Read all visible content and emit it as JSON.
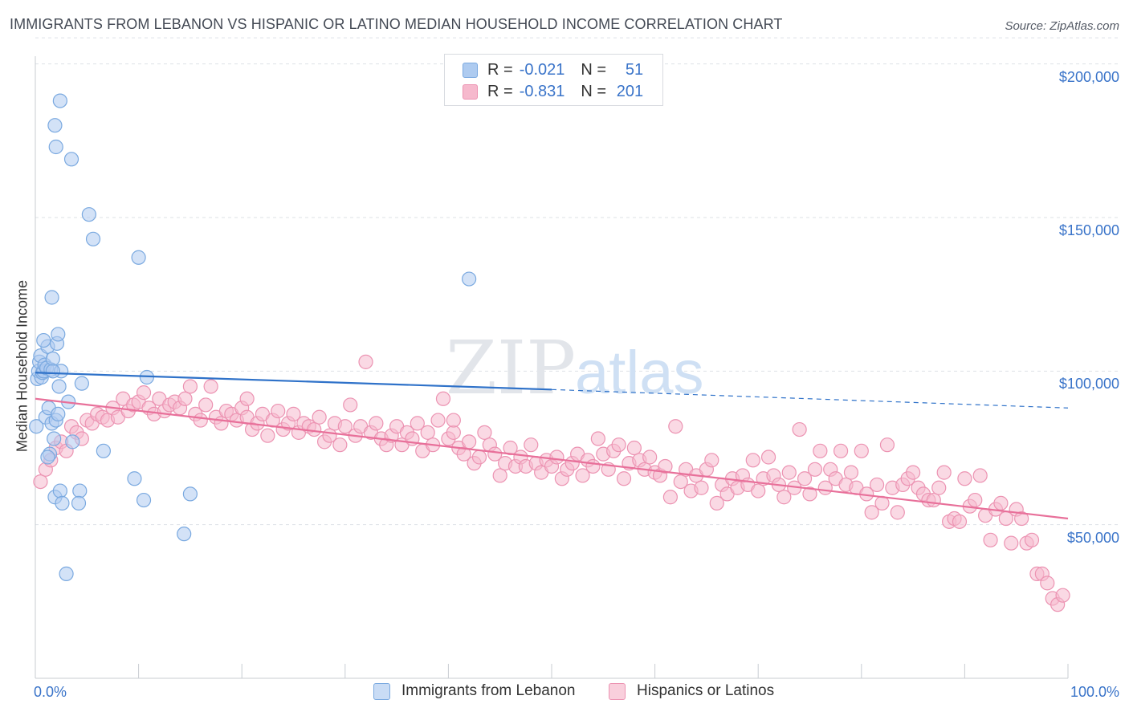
{
  "header": {
    "title": "IMMIGRANTS FROM LEBANON VS HISPANIC OR LATINO MEDIAN HOUSEHOLD INCOME CORRELATION CHART",
    "source": "Source: ZipAtlas.com"
  },
  "watermark": {
    "zip": "ZIP",
    "atlas": "atlas"
  },
  "legend_top": {
    "rows": [
      {
        "r_label": "R =",
        "r_value": "-0.021",
        "n_label": "N =",
        "n_value": "51"
      },
      {
        "r_label": "R =",
        "r_value": "-0.831",
        "n_label": "N =",
        "n_value": "201"
      }
    ]
  },
  "legend_bottom": {
    "items": [
      {
        "label": "Immigrants from Lebanon"
      },
      {
        "label": "Hispanics or Latinos"
      }
    ]
  },
  "colors": {
    "blue_fill": "#aecbf0",
    "blue_stroke": "#7aa9e0",
    "blue_line": "#2f72c9",
    "pink_fill": "#f6b9cd",
    "pink_stroke": "#ec93b2",
    "pink_line": "#e8709a",
    "grid": "#dde1e6",
    "axis_label": "#3a74c9"
  },
  "chart_data": {
    "type": "scatter",
    "title": "IMMIGRANTS FROM LEBANON VS HISPANIC OR LATINO MEDIAN HOUSEHOLD INCOME CORRELATION CHART",
    "xlabel": "",
    "ylabel": "Median Household Income",
    "xlim": [
      0,
      100
    ],
    "ylim": [
      0,
      210000
    ],
    "x_tick_labels": [
      "0.0%",
      "100.0%"
    ],
    "y_tick_labels": [
      "$50,000",
      "$100,000",
      "$150,000",
      "$200,000"
    ],
    "y_tick_values": [
      50000,
      100000,
      150000,
      200000
    ],
    "grid": true,
    "series": [
      {
        "name": "Immigrants from Lebanon",
        "r": -0.021,
        "n": 51,
        "trend": {
          "x0": 0,
          "y0": 99500,
          "x1": 50,
          "y1": 94000,
          "dashed_to_x": 100,
          "dashed_to_y": 88000
        },
        "points": [
          [
            0.1,
            82000
          ],
          [
            0.2,
            97500
          ],
          [
            0.3,
            100000
          ],
          [
            0.4,
            103000
          ],
          [
            0.5,
            105000
          ],
          [
            0.6,
            98000
          ],
          [
            0.7,
            99500
          ],
          [
            0.8,
            100000
          ],
          [
            0.9,
            102000
          ],
          [
            1.0,
            85000
          ],
          [
            1.1,
            101000
          ],
          [
            1.2,
            108000
          ],
          [
            1.3,
            88000
          ],
          [
            1.4,
            73000
          ],
          [
            1.5,
            100500
          ],
          [
            1.6,
            83000
          ],
          [
            1.7,
            104000
          ],
          [
            1.8,
            78000
          ],
          [
            1.9,
            180000
          ],
          [
            2.0,
            173000
          ],
          [
            2.1,
            109000
          ],
          [
            2.2,
            112000
          ],
          [
            2.3,
            95000
          ],
          [
            2.4,
            188000
          ],
          [
            2.5,
            100000
          ],
          [
            1.6,
            124000
          ],
          [
            1.7,
            100000
          ],
          [
            1.9,
            59000
          ],
          [
            2.0,
            84000
          ],
          [
            2.2,
            86000
          ],
          [
            2.4,
            61000
          ],
          [
            2.6,
            57000
          ],
          [
            3.2,
            90000
          ],
          [
            3.0,
            34000
          ],
          [
            3.5,
            169000
          ],
          [
            3.6,
            77000
          ],
          [
            4.3,
            61000
          ],
          [
            4.2,
            57000
          ],
          [
            4.5,
            96000
          ],
          [
            5.2,
            151000
          ],
          [
            5.6,
            143000
          ],
          [
            6.6,
            74000
          ],
          [
            9.6,
            65000
          ],
          [
            10.0,
            137000
          ],
          [
            10.5,
            58000
          ],
          [
            10.8,
            98000
          ],
          [
            14.4,
            47000
          ],
          [
            15.0,
            60000
          ],
          [
            42.0,
            130000
          ],
          [
            0.8,
            110000
          ],
          [
            1.2,
            72000
          ]
        ]
      },
      {
        "name": "Hispanics or Latinos",
        "r": -0.831,
        "n": 201,
        "trend": {
          "x0": 0,
          "y0": 91000,
          "x1": 100,
          "y1": 52000
        },
        "points": [
          [
            0.5,
            64000
          ],
          [
            1.0,
            68000
          ],
          [
            1.5,
            71000
          ],
          [
            2.0,
            75000
          ],
          [
            2.5,
            77000
          ],
          [
            3.0,
            74000
          ],
          [
            3.5,
            82000
          ],
          [
            4.0,
            80000
          ],
          [
            4.5,
            78000
          ],
          [
            5.0,
            84000
          ],
          [
            5.5,
            83000
          ],
          [
            6.0,
            86000
          ],
          [
            6.5,
            85000
          ],
          [
            7.0,
            84000
          ],
          [
            7.5,
            88000
          ],
          [
            8.0,
            85000
          ],
          [
            8.5,
            91000
          ],
          [
            9.0,
            87000
          ],
          [
            9.5,
            89000
          ],
          [
            10.0,
            90000
          ],
          [
            10.5,
            93000
          ],
          [
            11.0,
            88000
          ],
          [
            11.5,
            86000
          ],
          [
            12.0,
            91000
          ],
          [
            12.5,
            87000
          ],
          [
            13.0,
            89000
          ],
          [
            13.5,
            90000
          ],
          [
            14.0,
            88000
          ],
          [
            14.5,
            91000
          ],
          [
            15.0,
            95000
          ],
          [
            15.5,
            86000
          ],
          [
            16.0,
            84000
          ],
          [
            16.5,
            89000
          ],
          [
            17.0,
            95000
          ],
          [
            17.5,
            85000
          ],
          [
            18.0,
            83000
          ],
          [
            18.5,
            87000
          ],
          [
            19.0,
            86000
          ],
          [
            19.5,
            84000
          ],
          [
            20.0,
            88000
          ],
          [
            20.5,
            85000
          ],
          [
            21.0,
            81000
          ],
          [
            21.5,
            83000
          ],
          [
            22.0,
            86000
          ],
          [
            22.5,
            79000
          ],
          [
            23.0,
            84000
          ],
          [
            23.5,
            87000
          ],
          [
            24.0,
            81000
          ],
          [
            24.5,
            83000
          ],
          [
            25.0,
            86000
          ],
          [
            25.5,
            80000
          ],
          [
            26.0,
            83000
          ],
          [
            26.5,
            82000
          ],
          [
            27.0,
            81000
          ],
          [
            27.5,
            85000
          ],
          [
            28.0,
            77000
          ],
          [
            28.5,
            79000
          ],
          [
            29.0,
            83000
          ],
          [
            29.5,
            76000
          ],
          [
            30.0,
            82000
          ],
          [
            30.5,
            89000
          ],
          [
            31.0,
            79000
          ],
          [
            31.5,
            82000
          ],
          [
            32.0,
            103000
          ],
          [
            32.5,
            80000
          ],
          [
            33.0,
            83000
          ],
          [
            33.5,
            78000
          ],
          [
            34.0,
            76000
          ],
          [
            34.5,
            79000
          ],
          [
            35.0,
            82000
          ],
          [
            35.5,
            76000
          ],
          [
            36.0,
            80000
          ],
          [
            36.5,
            78000
          ],
          [
            37.0,
            83000
          ],
          [
            37.5,
            74000
          ],
          [
            38.0,
            80000
          ],
          [
            38.5,
            76000
          ],
          [
            39.0,
            84000
          ],
          [
            39.5,
            91000
          ],
          [
            40.0,
            78000
          ],
          [
            40.5,
            80000
          ],
          [
            41.0,
            75000
          ],
          [
            41.5,
            73000
          ],
          [
            42.0,
            77000
          ],
          [
            42.5,
            70000
          ],
          [
            43.0,
            72000
          ],
          [
            43.5,
            80000
          ],
          [
            44.0,
            76000
          ],
          [
            44.5,
            73000
          ],
          [
            45.0,
            66000
          ],
          [
            45.5,
            70000
          ],
          [
            46.0,
            75000
          ],
          [
            46.5,
            69000
          ],
          [
            47.0,
            72000
          ],
          [
            47.5,
            69000
          ],
          [
            48.0,
            76000
          ],
          [
            48.5,
            70000
          ],
          [
            49.0,
            67000
          ],
          [
            49.5,
            71000
          ],
          [
            50.0,
            69000
          ],
          [
            50.5,
            72000
          ],
          [
            51.0,
            65000
          ],
          [
            51.5,
            68000
          ],
          [
            52.0,
            70000
          ],
          [
            52.5,
            73000
          ],
          [
            53.0,
            66000
          ],
          [
            53.5,
            71000
          ],
          [
            54.0,
            69000
          ],
          [
            54.5,
            78000
          ],
          [
            55.0,
            73000
          ],
          [
            55.5,
            68000
          ],
          [
            56.0,
            74000
          ],
          [
            56.5,
            76000
          ],
          [
            57.0,
            65000
          ],
          [
            57.5,
            70000
          ],
          [
            58.0,
            75000
          ],
          [
            58.5,
            71000
          ],
          [
            59.0,
            68000
          ],
          [
            59.5,
            72000
          ],
          [
            60.0,
            67000
          ],
          [
            60.5,
            66000
          ],
          [
            61.0,
            69000
          ],
          [
            61.5,
            59000
          ],
          [
            62.0,
            82000
          ],
          [
            62.5,
            64000
          ],
          [
            63.0,
            68000
          ],
          [
            63.5,
            61000
          ],
          [
            64.0,
            66000
          ],
          [
            64.5,
            62000
          ],
          [
            65.0,
            68000
          ],
          [
            65.5,
            71000
          ],
          [
            66.0,
            57000
          ],
          [
            66.5,
            63000
          ],
          [
            67.0,
            60000
          ],
          [
            67.5,
            65000
          ],
          [
            68.0,
            62000
          ],
          [
            68.5,
            66000
          ],
          [
            69.0,
            63000
          ],
          [
            69.5,
            71000
          ],
          [
            70.0,
            61000
          ],
          [
            70.5,
            65000
          ],
          [
            71.0,
            72000
          ],
          [
            71.5,
            66000
          ],
          [
            72.0,
            63000
          ],
          [
            72.5,
            59000
          ],
          [
            73.0,
            67000
          ],
          [
            73.5,
            62000
          ],
          [
            74.0,
            81000
          ],
          [
            74.5,
            65000
          ],
          [
            75.0,
            60000
          ],
          [
            75.5,
            68000
          ],
          [
            76.0,
            74000
          ],
          [
            76.5,
            62000
          ],
          [
            77.0,
            68000
          ],
          [
            77.5,
            65000
          ],
          [
            78.0,
            74000
          ],
          [
            78.5,
            63000
          ],
          [
            79.0,
            67000
          ],
          [
            79.5,
            62000
          ],
          [
            80.0,
            74000
          ],
          [
            80.5,
            60000
          ],
          [
            81.0,
            54000
          ],
          [
            81.5,
            63000
          ],
          [
            82.0,
            57000
          ],
          [
            82.5,
            76000
          ],
          [
            83.0,
            62000
          ],
          [
            83.5,
            54000
          ],
          [
            84.0,
            63000
          ],
          [
            84.5,
            65000
          ],
          [
            85.0,
            67000
          ],
          [
            85.5,
            62000
          ],
          [
            86.0,
            60000
          ],
          [
            86.5,
            58000
          ],
          [
            87.0,
            58000
          ],
          [
            87.5,
            62000
          ],
          [
            88.0,
            67000
          ],
          [
            88.5,
            51000
          ],
          [
            89.0,
            52000
          ],
          [
            89.5,
            51000
          ],
          [
            90.0,
            65000
          ],
          [
            90.5,
            56000
          ],
          [
            91.0,
            58000
          ],
          [
            91.5,
            66000
          ],
          [
            92.0,
            53000
          ],
          [
            92.5,
            45000
          ],
          [
            93.0,
            55000
          ],
          [
            93.5,
            57000
          ],
          [
            94.0,
            52000
          ],
          [
            94.5,
            44000
          ],
          [
            95.0,
            55000
          ],
          [
            95.5,
            52000
          ],
          [
            96.0,
            44000
          ],
          [
            96.5,
            45000
          ],
          [
            97.0,
            34000
          ],
          [
            97.5,
            34000
          ],
          [
            98.0,
            31000
          ],
          [
            98.5,
            26000
          ],
          [
            99.0,
            24000
          ],
          [
            99.5,
            27000
          ],
          [
            40.5,
            84000
          ],
          [
            20.5,
            91000
          ]
        ]
      }
    ]
  }
}
